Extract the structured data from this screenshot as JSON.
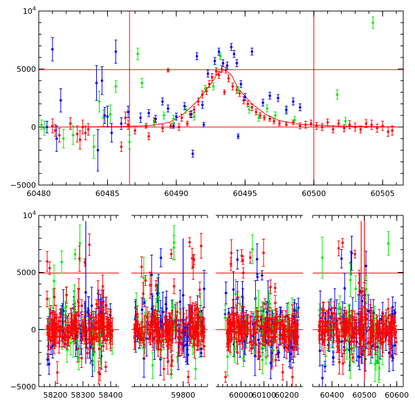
{
  "chart_data": [
    {
      "type": "scatter",
      "panel": "top",
      "title": "",
      "xlabel": "",
      "ylabel": "",
      "xlim": [
        60480,
        60506.5
      ],
      "ylim": [
        -5000,
        10000
      ],
      "xticks": [
        60480,
        60485,
        60490,
        60495,
        60500,
        60505
      ],
      "yticks": [
        {
          "value": 10000,
          "base": "10",
          "exp": "4"
        },
        {
          "value": 5000,
          "label": "5000"
        },
        {
          "value": 0,
          "label": "0"
        },
        {
          "value": -5000,
          "label": "−5000"
        }
      ],
      "reference_lines": {
        "horizontal": [
          0,
          4950
        ],
        "vertical": [
          60486.6,
          60500
        ]
      },
      "colors": {
        "red": "#ff0000",
        "green": "#00ee00",
        "blue": "#0000ee",
        "axis": "#000000"
      },
      "model_curve": {
        "color": "#ff0000",
        "x": [
          60482,
          60486,
          60488,
          60489.5,
          60490.5,
          60491.5,
          60492.5,
          60493.0,
          60493.5,
          60494.0,
          60494.5,
          60495.5,
          60496.5,
          60497.5,
          60499,
          60502,
          60506
        ],
        "y": [
          0,
          40,
          120,
          400,
          1100,
          2200,
          3700,
          4600,
          4950,
          4500,
          3300,
          2000,
          1100,
          550,
          220,
          80,
          20
        ]
      },
      "series": [
        {
          "name": "red",
          "color": "#ff0000",
          "points": [
            [
              60481.0,
              100,
              600
            ],
            [
              60481.2,
              -300,
              500
            ],
            [
              60481.5,
              -700,
              600
            ],
            [
              60482.3,
              300,
              500
            ],
            [
              60482.8,
              -600,
              700
            ],
            [
              60483.0,
              -1100,
              800
            ],
            [
              60483.2,
              0,
              600
            ],
            [
              60483.4,
              -500,
              600
            ],
            [
              60483.6,
              -200,
              500
            ],
            [
              60486.0,
              -1700,
              400
            ],
            [
              60486.3,
              800,
              500
            ],
            [
              60486.5,
              200,
              400
            ],
            [
              60487.0,
              -300,
              300
            ],
            [
              60487.8,
              100,
              200
            ],
            [
              60488.4,
              500,
              300
            ],
            [
              60489.0,
              -100,
              300
            ],
            [
              60489.4,
              4900,
              150
            ],
            [
              60489.6,
              100,
              200
            ],
            [
              60490.2,
              0,
              300
            ],
            [
              60490.4,
              800,
              300
            ],
            [
              60490.8,
              300,
              200
            ],
            [
              60491.0,
              1100,
              250
            ],
            [
              60491.3,
              1500,
              250
            ],
            [
              60491.6,
              2200,
              300
            ],
            [
              60491.9,
              2800,
              300
            ],
            [
              60492.2,
              3100,
              300
            ],
            [
              60492.4,
              3700,
              300
            ],
            [
              60492.6,
              4300,
              300
            ],
            [
              60492.9,
              4800,
              300
            ],
            [
              60493.1,
              4500,
              300
            ],
            [
              60493.3,
              5000,
              300
            ],
            [
              60493.6,
              4900,
              250
            ],
            [
              60493.8,
              4200,
              300
            ],
            [
              60494.1,
              3500,
              300
            ],
            [
              60494.4,
              3200,
              300
            ],
            [
              60494.6,
              2900,
              250
            ],
            [
              60494.9,
              2300,
              300
            ],
            [
              60495.2,
              2000,
              250
            ],
            [
              60495.5,
              1700,
              300
            ],
            [
              60495.8,
              1300,
              250
            ],
            [
              60496.1,
              1000,
              250
            ],
            [
              60496.4,
              800,
              200
            ],
            [
              60496.8,
              700,
              200
            ],
            [
              60497.1,
              500,
              200
            ],
            [
              60497.5,
              300,
              200
            ],
            [
              60498.0,
              200,
              200
            ],
            [
              60498.5,
              400,
              200
            ],
            [
              60499.0,
              100,
              250
            ],
            [
              60499.4,
              200,
              300
            ],
            [
              60499.8,
              300,
              300
            ],
            [
              60500.2,
              100,
              300
            ],
            [
              60500.6,
              0,
              300
            ],
            [
              60501.0,
              400,
              300
            ],
            [
              60501.4,
              -200,
              300
            ],
            [
              60501.8,
              300,
              300
            ],
            [
              60502.2,
              -100,
              300
            ],
            [
              60502.6,
              200,
              350
            ],
            [
              60503.0,
              0,
              350
            ],
            [
              60503.4,
              -200,
              300
            ],
            [
              60503.8,
              300,
              350
            ],
            [
              60504.2,
              200,
              400
            ],
            [
              60504.6,
              -100,
              350
            ],
            [
              60505.0,
              100,
              400
            ],
            [
              60505.4,
              -400,
              400
            ],
            [
              60505.7,
              -300,
              400
            ],
            [
              60493.5,
              3000,
              200
            ],
            [
              60488.0,
              -800,
              300
            ]
          ]
        },
        {
          "name": "green",
          "color": "#00ee00",
          "points": [
            [
              60480.2,
              200,
              400
            ],
            [
              60480.4,
              -100,
              600
            ],
            [
              60481.8,
              -1000,
              800
            ],
            [
              60482.5,
              -700,
              800
            ],
            [
              60484.0,
              -1700,
              1000
            ],
            [
              60484.4,
              2200,
              900
            ],
            [
              60484.7,
              800,
              700
            ],
            [
              60485.2,
              1100,
              800
            ],
            [
              60485.6,
              3500,
              500
            ],
            [
              60486.6,
              -1300,
              600
            ],
            [
              60487.2,
              6300,
              500
            ],
            [
              60487.5,
              3800,
              400
            ],
            [
              60488.4,
              400,
              300
            ],
            [
              60489.1,
              1000,
              300
            ],
            [
              60489.8,
              700,
              300
            ],
            [
              60490.7,
              1500,
              300
            ],
            [
              60491.3,
              900,
              300
            ],
            [
              60492.1,
              3300,
              300
            ],
            [
              60492.7,
              3500,
              300
            ],
            [
              60493.2,
              6100,
              300
            ],
            [
              60494.5,
              3200,
              300
            ],
            [
              60495.3,
              1500,
              300
            ],
            [
              60496.0,
              800,
              300
            ],
            [
              60496.6,
              1600,
              300
            ],
            [
              60497.2,
              1000,
              300
            ],
            [
              60498.0,
              1400,
              300
            ],
            [
              60498.6,
              600,
              300
            ],
            [
              60501.7,
              2800,
              400
            ],
            [
              60504.3,
              9000,
              500
            ],
            [
              60502.3,
              500,
              300
            ]
          ]
        },
        {
          "name": "blue",
          "color": "#0000ee",
          "points": [
            [
              60480.6,
              0,
              500
            ],
            [
              60481.0,
              6700,
              1000
            ],
            [
              60481.3,
              -1000,
              1100
            ],
            [
              60481.6,
              2300,
              1000
            ],
            [
              60484.2,
              3800,
              1500
            ],
            [
              60484.3,
              -2000,
              1800
            ],
            [
              60484.6,
              4000,
              1200
            ],
            [
              60484.8,
              1000,
              700
            ],
            [
              60485.0,
              900,
              900
            ],
            [
              60485.3,
              -500,
              800
            ],
            [
              60485.6,
              6500,
              1000
            ],
            [
              60486.0,
              300,
              500
            ],
            [
              60486.5,
              1300,
              500
            ],
            [
              60487.4,
              800,
              400
            ],
            [
              60488.0,
              1200,
              300
            ],
            [
              60488.5,
              700,
              300
            ],
            [
              60489.0,
              2200,
              300
            ],
            [
              60489.4,
              1600,
              300
            ],
            [
              60490.0,
              900,
              300
            ],
            [
              60490.6,
              1800,
              300
            ],
            [
              60491.1,
              1100,
              300
            ],
            [
              60491.5,
              6100,
              300
            ],
            [
              60491.9,
              1900,
              300
            ],
            [
              60492.3,
              4600,
              300
            ],
            [
              60492.8,
              5700,
              300
            ],
            [
              60493.1,
              6500,
              300
            ],
            [
              60493.4,
              5500,
              300
            ],
            [
              60493.7,
              5300,
              300
            ],
            [
              60494.0,
              6900,
              300
            ],
            [
              60494.2,
              6300,
              300
            ],
            [
              60494.4,
              5500,
              300
            ],
            [
              60494.7,
              3700,
              300
            ],
            [
              60495.5,
              6500,
              300
            ],
            [
              60495.0,
              2600,
              300
            ],
            [
              60496.3,
              2100,
              300
            ],
            [
              60496.8,
              2700,
              300
            ],
            [
              60497.4,
              2500,
              300
            ],
            [
              60498.0,
              1500,
              300
            ],
            [
              60498.5,
              2200,
              300
            ],
            [
              60499.0,
              1700,
              300
            ],
            [
              60491.2,
              -2300,
              300
            ],
            [
              60494.5,
              -800,
              200
            ],
            [
              60492.0,
              200,
              200
            ],
            [
              60489.8,
              100,
              200
            ]
          ]
        }
      ]
    },
    {
      "type": "scatter",
      "panel": "bottom",
      "title": "",
      "xlabel": "",
      "ylabel": "",
      "note": "x axis is broken into four observing seasons",
      "segments": [
        {
          "xlim": [
            58140,
            58430
          ],
          "xticks": [
            58200,
            58300,
            58400
          ],
          "data_xrange": [
            58170,
            58410
          ]
        },
        {
          "xlim": [
            59630,
            59880
          ],
          "xticks": [
            59800
          ],
          "data_xrange": [
            59640,
            59870
          ]
        },
        {
          "xlim": [
            59890,
            60270
          ],
          "xticks": [
            60000,
            60100,
            60200
          ],
          "data_xrange": [
            59930,
            60250
          ]
        },
        {
          "xlim": [
            60340,
            60620
          ],
          "xticks": [
            60400,
            60500,
            60600
          ],
          "data_xrange": [
            60360,
            60600
          ]
        }
      ],
      "ylim": [
        -5000,
        10000
      ],
      "yticks": [
        {
          "value": 10000,
          "base": "10",
          "exp": "4"
        },
        {
          "value": 5000,
          "label": "5000"
        },
        {
          "value": 0,
          "label": "0"
        },
        {
          "value": -5000,
          "label": "−5000"
        }
      ],
      "reference_lines": {
        "horizontal": [
          0,
          4950
        ]
      },
      "colors": {
        "red": "#ff0000",
        "green": "#00ee00",
        "blue": "#0000ee"
      },
      "series": [
        {
          "name": "blue",
          "color": "#0000ee",
          "core_scatter": 1500,
          "points_per_segment": [
            60,
            60,
            70,
            75
          ]
        },
        {
          "name": "green",
          "color": "#00ee00",
          "core_scatter": 1300,
          "points_per_segment": [
            35,
            35,
            40,
            40
          ]
        },
        {
          "name": "red",
          "color": "#ff0000",
          "core_scatter": 700,
          "points_per_segment": [
            170,
            170,
            190,
            190
          ]
        }
      ],
      "outliers": [
        {
          "segment": 3,
          "x": 60500,
          "y": 10000,
          "y_end": -4500,
          "color": "#ff0000"
        },
        {
          "segment": 3,
          "x": 60490,
          "y": 9500,
          "y_end": -3000,
          "color": "#ff0000"
        },
        {
          "segment": 1,
          "x": 59800,
          "y": 8000,
          "y_end": -2000,
          "color": "#0000ee"
        },
        {
          "segment": 0,
          "x": 58310,
          "y": 9500,
          "y_end": -3000,
          "color": "#0000ee"
        }
      ]
    }
  ]
}
